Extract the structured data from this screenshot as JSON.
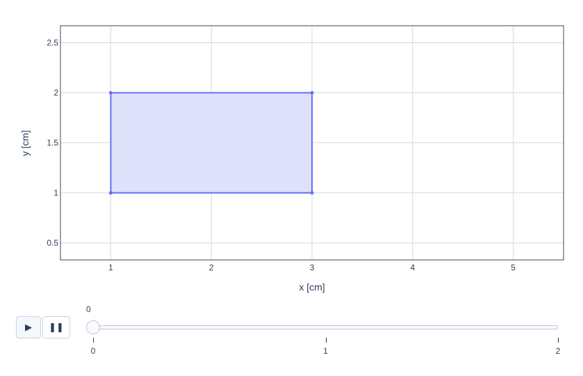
{
  "chart_data": {
    "type": "scatter",
    "title": "",
    "xlabel": "x [cm]",
    "ylabel": "y [cm]",
    "xlim": [
      0.5,
      5.5
    ],
    "ylim": [
      0.33,
      2.67
    ],
    "xticks": [
      1,
      2,
      3,
      4,
      5
    ],
    "xtick_labels": [
      "1",
      "2",
      "3",
      "4",
      "5"
    ],
    "yticks": [
      0.5,
      1,
      1.5,
      2,
      2.5
    ],
    "ytick_labels": [
      "0.5",
      "1",
      "1.5",
      "2",
      "2.5"
    ],
    "grid": true,
    "series": [
      {
        "x": [
          1,
          3,
          3,
          1,
          1
        ],
        "y": [
          1,
          1,
          2,
          2,
          1
        ],
        "mode": "lines+markers",
        "fill": "toself",
        "line_color": "#636efa",
        "fill_color": "#dfe1fb"
      }
    ]
  },
  "animation": {
    "play_label": "▶",
    "pause_label": "❚❚",
    "current_value": "0",
    "steps": [
      "0",
      "1",
      "2"
    ],
    "active_step": 0
  },
  "colors": {
    "grid": "#d9d9d9",
    "text": "#2a3f5f"
  }
}
